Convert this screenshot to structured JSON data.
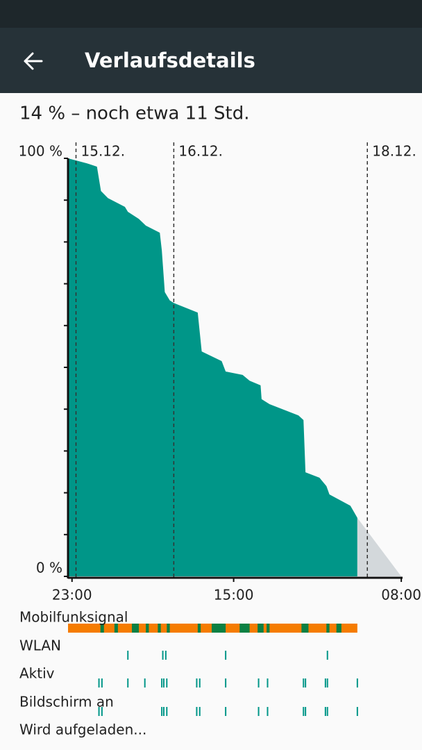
{
  "header": {
    "title": "Verlaufsdetails"
  },
  "summary": "14 % – noch etwa 11 Std.",
  "chart_data": {
    "type": "area",
    "xlim": [
      -0.4,
      33.2
    ],
    "ylim": [
      0,
      100
    ],
    "xticks": [
      {
        "value": 0,
        "label": "23:00"
      },
      {
        "value": 16.2,
        "label": "15:00"
      },
      {
        "value": 33,
        "label": "08:00"
      }
    ],
    "yticks": [
      {
        "value": 0,
        "label": "0 %"
      },
      {
        "value": 100,
        "label": "100 %"
      }
    ],
    "minor_yticks": [
      10,
      20,
      30,
      40,
      50,
      60,
      70,
      80,
      90
    ],
    "date_markers": [
      {
        "value": 0.4,
        "label": "15.12."
      },
      {
        "value": 10.2,
        "label": "16.12."
      },
      {
        "value": 29.6,
        "label": "18.12."
      }
    ],
    "series": [
      {
        "color": "#009688",
        "x": [
          -0.4,
          1.5,
          2.5,
          2.9,
          3.6,
          5.3,
          5.6,
          6.7,
          7.4,
          8.8,
          9.0,
          9.3,
          9.8,
          10.2,
          12.6,
          13.0,
          15.0,
          15.4,
          17.1,
          17.8,
          18.9,
          19.0,
          19.8,
          22.7,
          23.2,
          23.4,
          24.8,
          25.5,
          25.8,
          27.9,
          28.6
        ],
        "values": [
          100,
          98.8,
          98,
          92.2,
          90.5,
          88.4,
          87.2,
          85.5,
          83.9,
          82.2,
          78,
          68,
          66,
          65.4,
          63.1,
          53.8,
          51.5,
          49,
          48.2,
          46.8,
          45.7,
          42.4,
          41.2,
          38.5,
          37.4,
          24.9,
          23.6,
          21.6,
          19.6,
          16.9,
          14
        ]
      },
      {
        "color": "#d3d8db",
        "x": [
          28.6,
          33
        ],
        "values": [
          14,
          0
        ]
      }
    ],
    "tracks": [
      {
        "name": "Mobilfunksignal",
        "color": "#f57c00",
        "span": [
          -0.4,
          28.6
        ],
        "segment_color": "#0b8043",
        "segments": [
          [
            2.85,
            3.2
          ],
          [
            4.25,
            4.6
          ],
          [
            6.0,
            6.7
          ],
          [
            7.4,
            7.7
          ],
          [
            8.6,
            8.9
          ],
          [
            9.5,
            9.8
          ],
          [
            12.6,
            12.9
          ],
          [
            14.0,
            15.4
          ],
          [
            16.8,
            17.8
          ],
          [
            18.6,
            19.2
          ],
          [
            19.5,
            19.8
          ],
          [
            23.0,
            23.7
          ],
          [
            25.5,
            25.8
          ],
          [
            26.5,
            27.0
          ]
        ]
      },
      {
        "name": "WLAN",
        "color": "#009688",
        "ticks": [
          5.6,
          9.1,
          9.4,
          15.4,
          25.6
        ]
      },
      {
        "name": "Aktiv",
        "color": "#009688",
        "ticks": [
          2.7,
          3.0,
          5.6,
          7.3,
          9.0,
          9.2,
          9.5,
          12.5,
          12.8,
          15.4,
          18.7,
          19.6,
          23.2,
          23.4,
          25.4,
          25.6,
          28.6
        ]
      },
      {
        "name": "Bildschirm an",
        "color": "#009688",
        "ticks": [
          2.7,
          3.0,
          9.0,
          9.2,
          9.5,
          12.5,
          12.8,
          15.4,
          18.7,
          19.6,
          23.2,
          23.4,
          25.4,
          25.6,
          28.6
        ]
      },
      {
        "name": "Wird aufgeladen...",
        "color": "#009688",
        "ticks": []
      }
    ]
  }
}
